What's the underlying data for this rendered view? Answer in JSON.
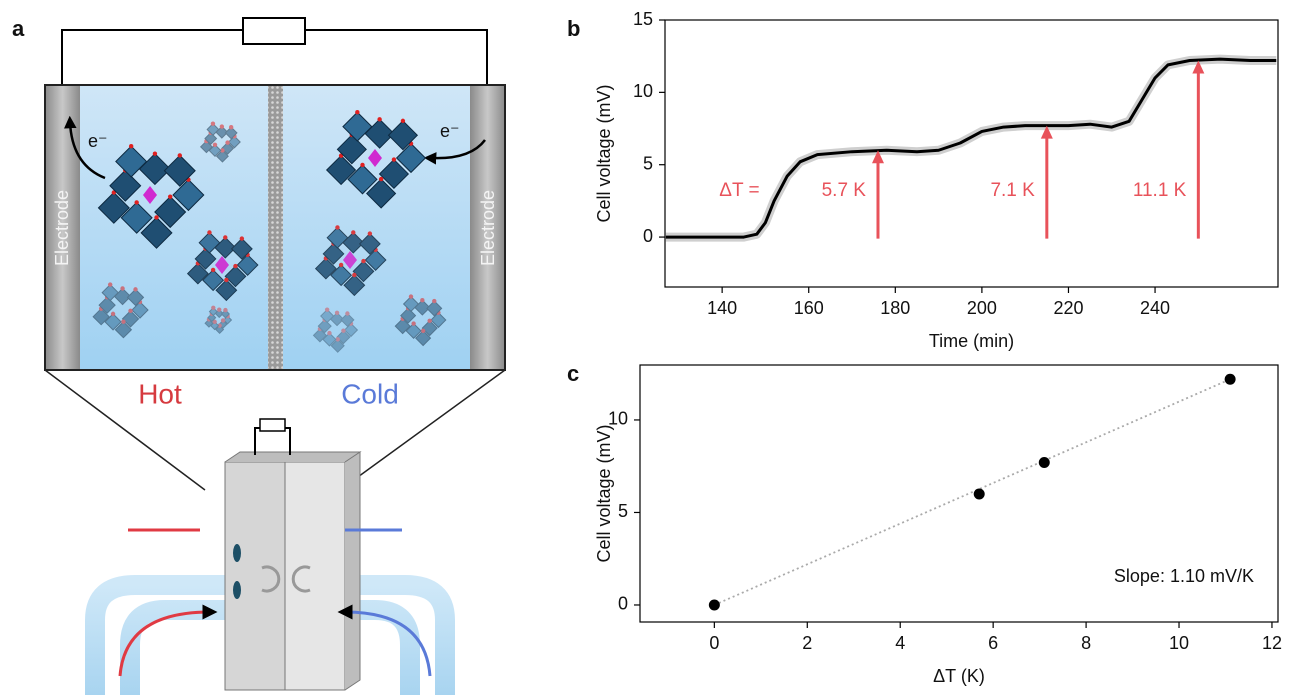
{
  "diagram": {
    "panel_label": "a",
    "electrode_left": "Electrode",
    "electrode_right": "Electrode",
    "electron_left": "e⁻",
    "electron_right": "e⁻",
    "hot": "Hot",
    "cold": "Cold"
  },
  "chart_data": [
    {
      "type": "line",
      "panel_label": "b",
      "x_label": "Time (min)",
      "y_label": "Cell voltage (mV)",
      "x": [
        127,
        135,
        145,
        148,
        150,
        152,
        155,
        158,
        162,
        170,
        178,
        185,
        190,
        195,
        200,
        205,
        210,
        220,
        225,
        230,
        234,
        237,
        240,
        243,
        248,
        255,
        262,
        268
      ],
      "values": [
        0,
        0,
        0,
        0.2,
        1,
        2.5,
        4.2,
        5.2,
        5.7,
        5.9,
        6,
        5.9,
        6,
        6.5,
        7.3,
        7.6,
        7.7,
        7.7,
        7.8,
        7.6,
        8,
        9.5,
        11,
        11.9,
        12.2,
        12.3,
        12.2,
        12.2
      ],
      "color": "#000000",
      "noise_color": "#cfcfcf",
      "xlim": [
        126.8,
        268.4
      ],
      "ylim": [
        -3.45,
        15
      ],
      "xticks": [
        140,
        160,
        180,
        200,
        220,
        240
      ],
      "yticks": [
        0,
        5,
        10,
        15
      ],
      "delta_label": "ΔT =",
      "arrow_color": "#e8525a",
      "arrows": [
        {
          "label": "5.7 K",
          "x": 176,
          "y": 6
        },
        {
          "label": "7.1 K",
          "x": 215,
          "y": 7.7
        },
        {
          "label": "11.1 K",
          "x": 250,
          "y": 12.2
        }
      ]
    },
    {
      "type": "scatter",
      "panel_label": "c",
      "x_label": "ΔT (K)",
      "y_label": "Cell voltage (mV)",
      "x": [
        0,
        5.7,
        7.1,
        11.1
      ],
      "values": [
        0,
        6,
        7.7,
        12.2
      ],
      "color": "#000000",
      "xlim": [
        -1.6,
        12.13
      ],
      "ylim": [
        -0.92,
        12.97
      ],
      "xticks": [
        0,
        2,
        4,
        6,
        8,
        10,
        12
      ],
      "yticks": [
        0,
        5,
        10
      ],
      "annotation": "Slope: 1.10 mV/K"
    }
  ]
}
